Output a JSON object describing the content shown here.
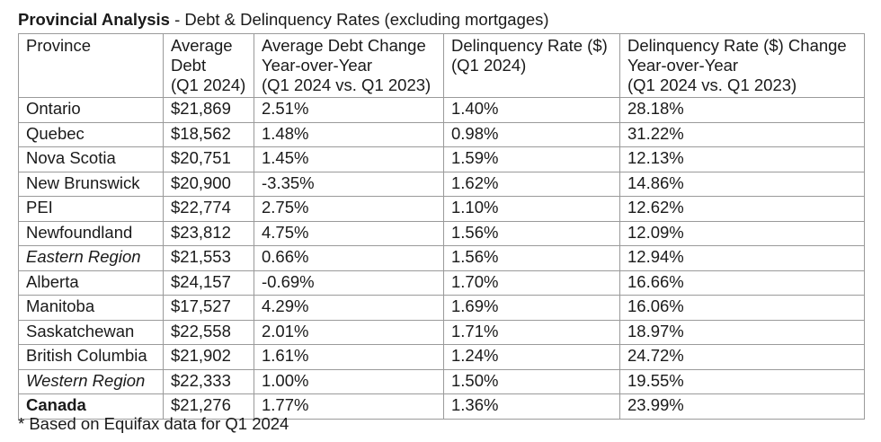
{
  "title": {
    "bold": "Provincial Analysis",
    "rest": " - Debt & Delinquency Rates (excluding mortgages)"
  },
  "table": {
    "headers": [
      [
        "Province"
      ],
      [
        "Average",
        "Debt",
        "(Q1 2024)"
      ],
      [
        "Average Debt Change",
        "Year-over-Year",
        "(Q1 2024 vs. Q1 2023)"
      ],
      [
        "Delinquency Rate ($)",
        "(Q1 2024)"
      ],
      [
        "Delinquency Rate ($) Change",
        "Year-over-Year",
        "(Q1 2024 vs. Q1 2023)"
      ]
    ],
    "rows": [
      {
        "style": "normal",
        "cells": [
          "Ontario",
          "$21,869",
          "2.51%",
          "1.40%",
          "28.18%"
        ]
      },
      {
        "style": "normal",
        "cells": [
          "Quebec",
          "$18,562",
          "1.48%",
          "0.98%",
          "31.22%"
        ]
      },
      {
        "style": "normal",
        "cells": [
          "Nova Scotia",
          "$20,751",
          "1.45%",
          "1.59%",
          "12.13%"
        ]
      },
      {
        "style": "normal",
        "cells": [
          "New Brunswick",
          "$20,900",
          "-3.35%",
          "1.62%",
          "14.86%"
        ]
      },
      {
        "style": "normal",
        "cells": [
          "PEI",
          "$22,774",
          "2.75%",
          "1.10%",
          "12.62%"
        ]
      },
      {
        "style": "normal",
        "cells": [
          "Newfoundland",
          "$23,812",
          "4.75%",
          "1.56%",
          "12.09%"
        ]
      },
      {
        "style": "italic",
        "cells": [
          "Eastern Region",
          "$21,553",
          "0.66%",
          "1.56%",
          "12.94%"
        ]
      },
      {
        "style": "normal",
        "cells": [
          "Alberta",
          "$24,157",
          "-0.69%",
          "1.70%",
          "16.66%"
        ]
      },
      {
        "style": "normal",
        "cells": [
          "Manitoba",
          "$17,527",
          "4.29%",
          "1.69%",
          "16.06%"
        ]
      },
      {
        "style": "normal",
        "cells": [
          "Saskatchewan",
          "$22,558",
          "2.01%",
          "1.71%",
          "18.97%"
        ]
      },
      {
        "style": "normal",
        "cells": [
          "British Columbia",
          "$21,902",
          "1.61%",
          "1.24%",
          "24.72%"
        ]
      },
      {
        "style": "italic",
        "cells": [
          "Western Region",
          "$22,333",
          "1.00%",
          "1.50%",
          "19.55%"
        ]
      },
      {
        "style": "bold",
        "cells": [
          "Canada",
          "$21,276",
          "1.77%",
          "1.36%",
          "23.99%"
        ]
      }
    ]
  },
  "footnote": "* Based on Equifax data for Q1 2024"
}
